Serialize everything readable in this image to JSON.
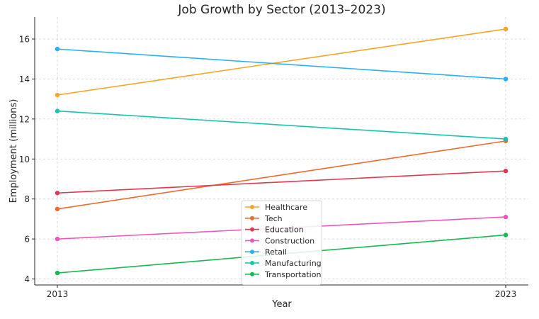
{
  "chart_data": {
    "type": "line",
    "title": "Job Growth by Sector (2013–2023)",
    "xlabel": "Year",
    "ylabel": "Employment (millions)",
    "x": [
      2013,
      2023
    ],
    "x_tick_labels": [
      "2013",
      "2023"
    ],
    "ylim": [
      3.7,
      17.1
    ],
    "y_ticks": [
      4,
      6,
      8,
      10,
      12,
      14,
      16
    ],
    "y_tick_labels": [
      "4",
      "6",
      "8",
      "10",
      "12",
      "14",
      "16"
    ],
    "grid": true,
    "legend_position": "bottom-center",
    "series": [
      {
        "name": "Healthcare",
        "values": [
          13.2,
          16.5
        ],
        "color": "#f5a623"
      },
      {
        "name": "Tech",
        "values": [
          7.5,
          10.9
        ],
        "color": "#ee6a2f"
      },
      {
        "name": "Education",
        "values": [
          8.3,
          9.4
        ],
        "color": "#e0394f"
      },
      {
        "name": "Construction",
        "values": [
          6.0,
          7.1
        ],
        "color": "#ee56bc"
      },
      {
        "name": "Retail",
        "values": [
          15.5,
          14.0
        ],
        "color": "#2ab0f2"
      },
      {
        "name": "Manufacturing",
        "values": [
          12.4,
          11.0
        ],
        "color": "#16c4b0"
      },
      {
        "name": "Transportation",
        "values": [
          4.3,
          6.2
        ],
        "color": "#18b851"
      }
    ]
  }
}
